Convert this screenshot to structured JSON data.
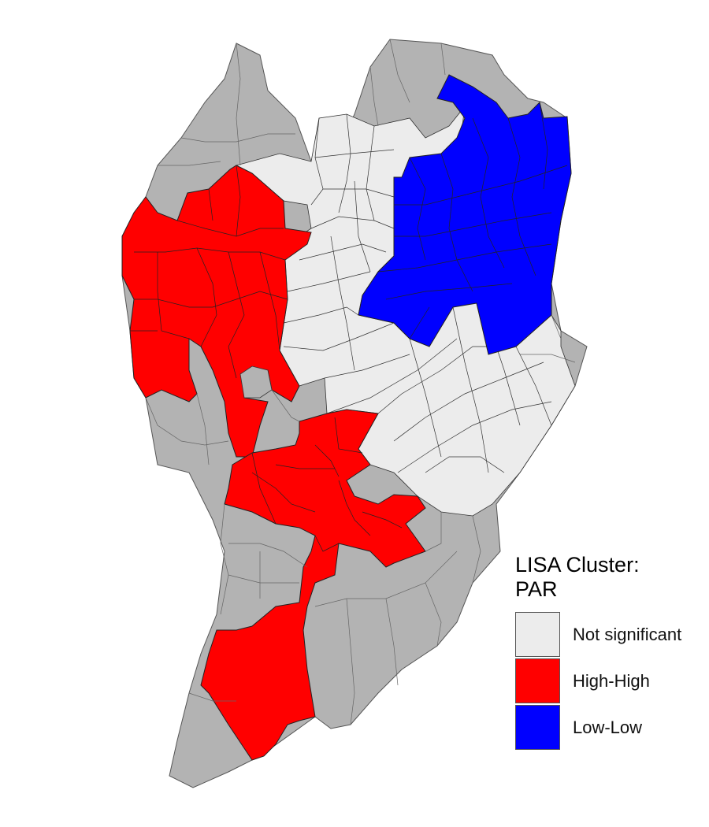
{
  "map": {
    "colors": {
      "not_significant": "#ececec",
      "high_high": "#ff0000",
      "low_low": "#0000ff",
      "no_data": "#b3b3b3",
      "border": "#333333"
    }
  },
  "legend": {
    "title_line1": "LISA Cluster:",
    "title_line2": "PAR",
    "items": [
      {
        "label": "Not significant",
        "color": "#ececec"
      },
      {
        "label": "High-High",
        "color": "#ff0000"
      },
      {
        "label": "Low-Low",
        "color": "#0000ff"
      }
    ]
  }
}
